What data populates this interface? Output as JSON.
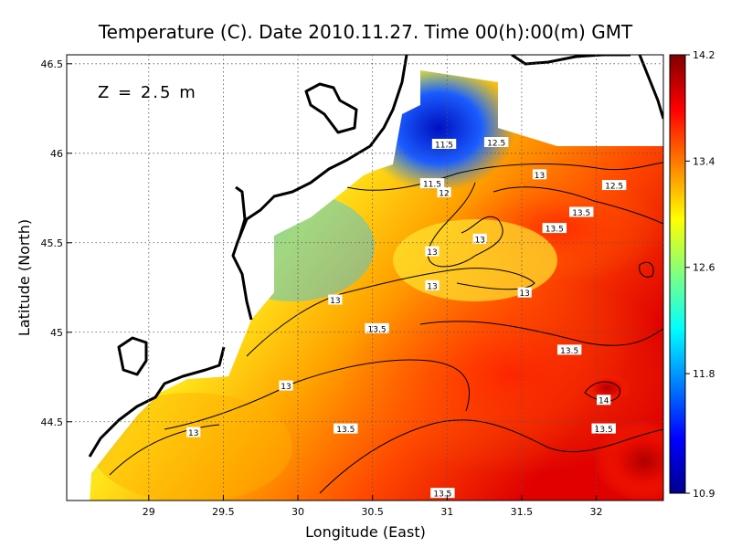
{
  "title": "Temperature (C). Date 2010.11.27. Time 00(h):00(m) GMT",
  "depth_label": "Z = 2.5 m",
  "x_axis": {
    "label": "Longitude (East)",
    "range": [
      28.45,
      32.45
    ],
    "ticks": [
      "29",
      "29.5",
      "30",
      "30.5",
      "31",
      "31.5",
      "32"
    ],
    "tick_values": [
      29,
      29.5,
      30,
      30.5,
      31,
      31.5,
      32
    ]
  },
  "y_axis": {
    "label": "Latitude (North)",
    "range": [
      44.06,
      46.55
    ],
    "ticks": [
      "44.5",
      "45",
      "45.5",
      "46",
      "46.5"
    ],
    "tick_values": [
      44.5,
      45,
      45.5,
      46,
      46.5
    ]
  },
  "colorbar": {
    "min": 10.9,
    "max": 14.2,
    "ticks": [
      "14.2",
      "13.4",
      "12.6",
      "11.8",
      "10.9"
    ],
    "tick_values": [
      14.2,
      13.4,
      12.6,
      11.8,
      10.9
    ],
    "colors": [
      "#00008f",
      "#0000ff",
      "#0080ff",
      "#00ffff",
      "#80ff80",
      "#ffff00",
      "#ff8000",
      "#ff0000",
      "#800000"
    ]
  },
  "contour_labels": [
    {
      "text": "11.5",
      "lon": 30.98,
      "lat": 46.05
    },
    {
      "text": "12.5",
      "lon": 31.33,
      "lat": 46.06
    },
    {
      "text": "11.5",
      "lon": 30.9,
      "lat": 45.83
    },
    {
      "text": "12",
      "lon": 30.98,
      "lat": 45.78
    },
    {
      "text": "13",
      "lon": 31.62,
      "lat": 45.88
    },
    {
      "text": "12.5",
      "lon": 32.12,
      "lat": 45.82
    },
    {
      "text": "13.5",
      "lon": 31.9,
      "lat": 45.67
    },
    {
      "text": "13.5",
      "lon": 31.72,
      "lat": 45.58
    },
    {
      "text": "13",
      "lon": 31.22,
      "lat": 45.52
    },
    {
      "text": "13",
      "lon": 30.9,
      "lat": 45.45
    },
    {
      "text": "13",
      "lon": 30.9,
      "lat": 45.26
    },
    {
      "text": "13",
      "lon": 31.52,
      "lat": 45.22
    },
    {
      "text": "13",
      "lon": 30.25,
      "lat": 45.18
    },
    {
      "text": "13.5",
      "lon": 30.53,
      "lat": 45.02
    },
    {
      "text": "13.5",
      "lon": 31.82,
      "lat": 44.9
    },
    {
      "text": "13",
      "lon": 29.92,
      "lat": 44.7
    },
    {
      "text": "14",
      "lon": 32.05,
      "lat": 44.62
    },
    {
      "text": "13.5",
      "lon": 32.05,
      "lat": 44.46
    },
    {
      "text": "13.5",
      "lon": 30.32,
      "lat": 44.46
    },
    {
      "text": "13",
      "lon": 29.3,
      "lat": 44.44
    },
    {
      "text": "13.5",
      "lon": 30.97,
      "lat": 44.1
    }
  ]
}
